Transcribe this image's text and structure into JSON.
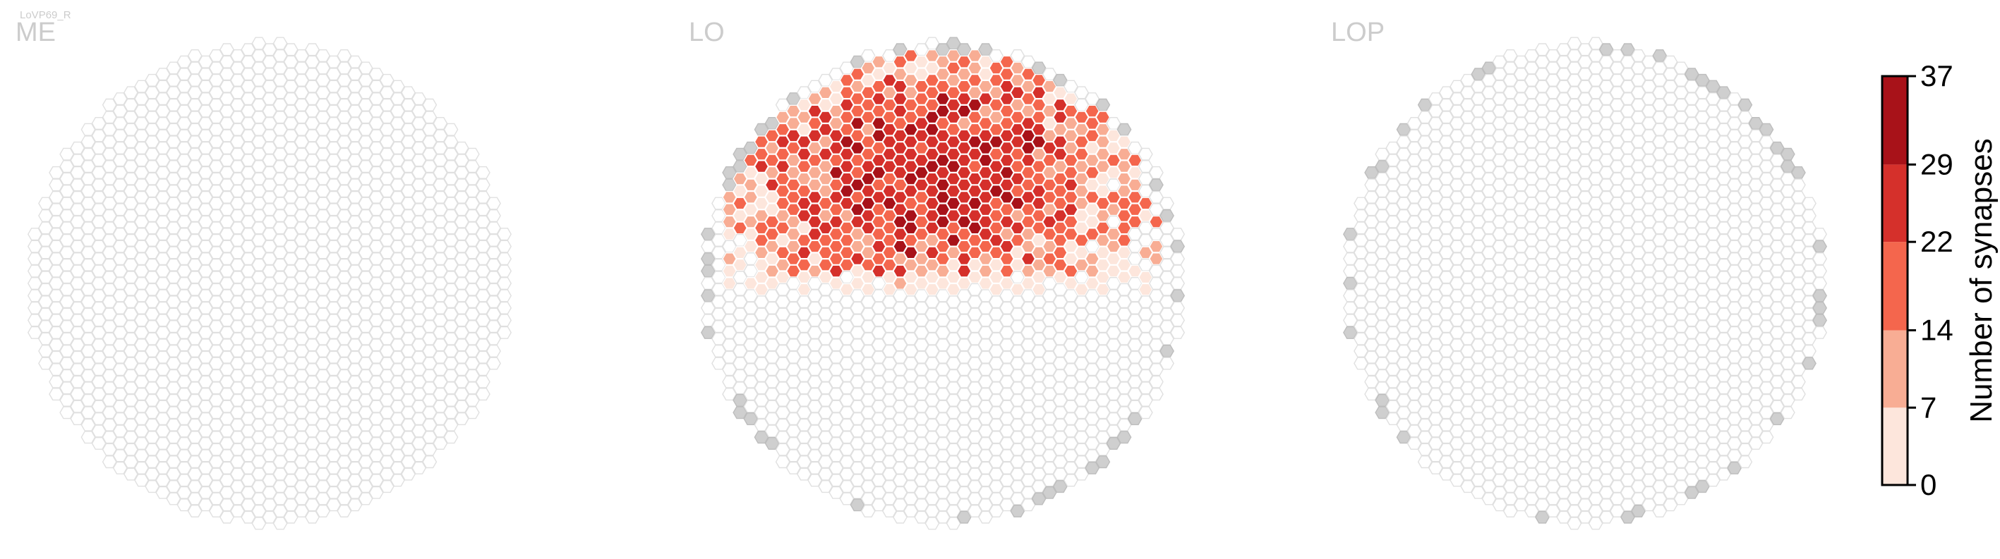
{
  "figure": {
    "cell_type_label": "LoVP69_R"
  },
  "panels": [
    {
      "label": "ME"
    },
    {
      "label": "LO"
    },
    {
      "label": "LOP"
    }
  ],
  "colors": {
    "empty_column_stroke": "#e0e0e0",
    "edge_column_fill": "#cfcfcf",
    "bins": [
      "#fde6dc",
      "#f8ad94",
      "#f4664d",
      "#d5302b",
      "#a81219"
    ]
  },
  "colorbar": {
    "label": "Number of synapses",
    "ticks": [
      "0",
      "7",
      "14",
      "22",
      "29",
      "37"
    ],
    "range": [
      0,
      37
    ]
  },
  "chart_data": {
    "type": "heatmap",
    "title": "",
    "value_label": "Number of synapses",
    "value_range": [
      0,
      37
    ],
    "bin_edges": [
      0,
      7,
      14,
      22,
      29,
      37
    ],
    "panels": [
      "ME",
      "LO",
      "LOP"
    ],
    "summary": {
      "ME": "no synapses in any column",
      "LO": "synapses concentrated in the dorsal (upper) half of the medulla-like hexagonal column grid, peak bin 29-37",
      "LOP": "no synapses in any column"
    }
  }
}
